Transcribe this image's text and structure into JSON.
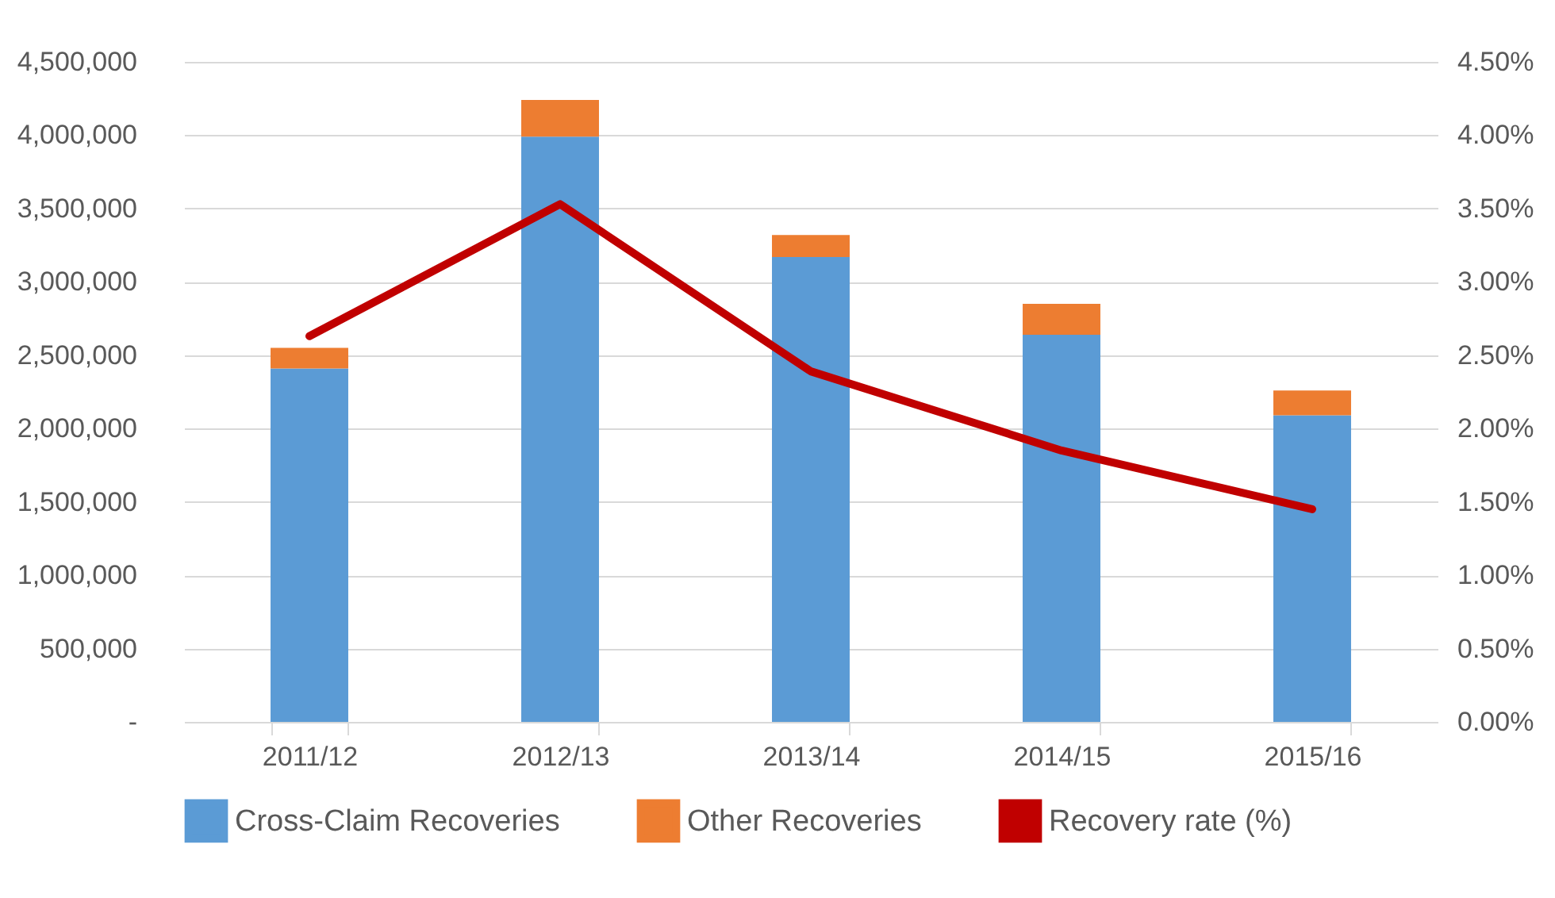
{
  "chart_data": {
    "type": "bar",
    "stacked": true,
    "categories": [
      "2011/12",
      "2012/13",
      "2013/14",
      "2014/15",
      "2015/16"
    ],
    "series": [
      {
        "name": "Cross-Claim Recoveries",
        "color": "#5b9bd5",
        "values": [
          2410000,
          3990000,
          3170000,
          2640000,
          2090000
        ]
      },
      {
        "name": "Other Recoveries",
        "color": "#ed7d31",
        "values": [
          140000,
          250000,
          150000,
          210000,
          170000
        ]
      },
      {
        "name": "Recovery rate (%)",
        "type": "line",
        "axis": "y2",
        "color": "#c00000",
        "values": [
          2.63,
          3.53,
          2.39,
          1.85,
          1.45
        ]
      }
    ],
    "ylim": [
      0,
      4500000
    ],
    "yticks": [
      {
        "value": 0,
        "label": "-"
      },
      {
        "value": 500000,
        "label": "500,000"
      },
      {
        "value": 1000000,
        "label": "1,000,000"
      },
      {
        "value": 1500000,
        "label": "1,500,000"
      },
      {
        "value": 2000000,
        "label": "2,000,000"
      },
      {
        "value": 2500000,
        "label": "2,500,000"
      },
      {
        "value": 3000000,
        "label": "3,000,000"
      },
      {
        "value": 3500000,
        "label": "3,500,000"
      },
      {
        "value": 4000000,
        "label": "4,000,000"
      },
      {
        "value": 4500000,
        "label": "4,500,000"
      }
    ],
    "y2lim": [
      0,
      4.5
    ],
    "y2ticks": [
      {
        "value": 0,
        "label": "0.00%"
      },
      {
        "value": 0.5,
        "label": "0.50%"
      },
      {
        "value": 1,
        "label": "1.00%"
      },
      {
        "value": 1.5,
        "label": "1.50%"
      },
      {
        "value": 2,
        "label": "2.00%"
      },
      {
        "value": 2.5,
        "label": "2.50%"
      },
      {
        "value": 3,
        "label": "3.00%"
      },
      {
        "value": 3.5,
        "label": "3.50%"
      },
      {
        "value": 4,
        "label": "4.00%"
      },
      {
        "value": 4.5,
        "label": "4.50%"
      }
    ],
    "grid": "y",
    "legend": "bottom",
    "line_style": "solid",
    "marker": "none"
  }
}
